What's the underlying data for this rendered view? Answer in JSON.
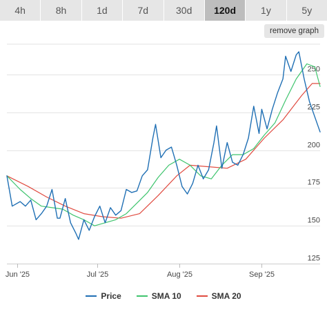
{
  "range_tabs": [
    {
      "label": "4h",
      "active": false
    },
    {
      "label": "8h",
      "active": false
    },
    {
      "label": "1d",
      "active": false
    },
    {
      "label": "7d",
      "active": false
    },
    {
      "label": "30d",
      "active": false
    },
    {
      "label": "120d",
      "active": true
    },
    {
      "label": "1y",
      "active": false
    },
    {
      "label": "5y",
      "active": false
    }
  ],
  "remove_graph_label": "remove graph",
  "chart_data": {
    "type": "line",
    "title": "",
    "xlabel": "",
    "ylabel": "",
    "x_start": "2025-05-28",
    "x_end": "2025-09-23",
    "x_ticks": [
      {
        "label": "Jun '25",
        "date": "2025-06-01"
      },
      {
        "label": "Jul '25",
        "date": "2025-07-01"
      },
      {
        "label": "Aug '25",
        "date": "2025-08-01"
      },
      {
        "label": "Sep '25",
        "date": "2025-09-01"
      }
    ],
    "ylim": [
      125,
      270
    ],
    "y_ticks": [
      125,
      150,
      175,
      200,
      225,
      250
    ],
    "grid": true,
    "legend_position": "bottom",
    "series": [
      {
        "name": "Price",
        "color": "#1f6fb4",
        "points": [
          [
            "2025-05-28",
            183
          ],
          [
            "2025-05-30",
            163
          ],
          [
            "2025-06-02",
            166
          ],
          [
            "2025-06-04",
            163
          ],
          [
            "2025-06-06",
            167
          ],
          [
            "2025-06-08",
            154
          ],
          [
            "2025-06-10",
            158
          ],
          [
            "2025-06-12",
            163
          ],
          [
            "2025-06-14",
            174
          ],
          [
            "2025-06-16",
            155
          ],
          [
            "2025-06-17",
            155
          ],
          [
            "2025-06-19",
            168
          ],
          [
            "2025-06-21",
            152
          ],
          [
            "2025-06-23",
            145
          ],
          [
            "2025-06-24",
            141
          ],
          [
            "2025-06-26",
            154
          ],
          [
            "2025-06-28",
            147
          ],
          [
            "2025-06-30",
            156
          ],
          [
            "2025-07-02",
            163
          ],
          [
            "2025-07-04",
            152
          ],
          [
            "2025-07-06",
            162
          ],
          [
            "2025-07-08",
            157
          ],
          [
            "2025-07-10",
            160
          ],
          [
            "2025-07-12",
            174
          ],
          [
            "2025-07-14",
            172
          ],
          [
            "2025-07-16",
            173
          ],
          [
            "2025-07-18",
            183
          ],
          [
            "2025-07-20",
            187
          ],
          [
            "2025-07-22",
            208
          ],
          [
            "2025-07-23",
            217
          ],
          [
            "2025-07-25",
            195
          ],
          [
            "2025-07-27",
            200
          ],
          [
            "2025-07-29",
            202
          ],
          [
            "2025-07-31",
            190
          ],
          [
            "2025-08-02",
            176
          ],
          [
            "2025-08-04",
            171
          ],
          [
            "2025-08-06",
            178
          ],
          [
            "2025-08-08",
            190
          ],
          [
            "2025-08-10",
            181
          ],
          [
            "2025-08-12",
            187
          ],
          [
            "2025-08-14",
            205
          ],
          [
            "2025-08-15",
            216
          ],
          [
            "2025-08-17",
            188
          ],
          [
            "2025-08-19",
            205
          ],
          [
            "2025-08-21",
            192
          ],
          [
            "2025-08-23",
            190
          ],
          [
            "2025-08-25",
            197
          ],
          [
            "2025-08-27",
            208
          ],
          [
            "2025-08-29",
            229
          ],
          [
            "2025-08-31",
            211
          ],
          [
            "2025-09-01",
            227
          ],
          [
            "2025-09-03",
            214
          ],
          [
            "2025-09-05",
            227
          ],
          [
            "2025-09-07",
            238
          ],
          [
            "2025-09-09",
            247
          ],
          [
            "2025-09-10",
            262
          ],
          [
            "2025-09-12",
            252
          ],
          [
            "2025-09-14",
            263
          ],
          [
            "2025-09-15",
            265
          ],
          [
            "2025-09-17",
            247
          ],
          [
            "2025-09-19",
            232
          ],
          [
            "2025-09-21",
            222
          ],
          [
            "2025-09-23",
            212
          ]
        ]
      },
      {
        "name": "SMA 10",
        "color": "#3ec46d",
        "points": [
          [
            "2025-05-28",
            183
          ],
          [
            "2025-06-02",
            174
          ],
          [
            "2025-06-06",
            168
          ],
          [
            "2025-06-10",
            163
          ],
          [
            "2025-06-14",
            162
          ],
          [
            "2025-06-18",
            161
          ],
          [
            "2025-06-22",
            157
          ],
          [
            "2025-06-26",
            154
          ],
          [
            "2025-06-30",
            150
          ],
          [
            "2025-07-04",
            152
          ],
          [
            "2025-07-08",
            154
          ],
          [
            "2025-07-12",
            158
          ],
          [
            "2025-07-16",
            165
          ],
          [
            "2025-07-20",
            172
          ],
          [
            "2025-07-24",
            182
          ],
          [
            "2025-07-28",
            190
          ],
          [
            "2025-08-01",
            194
          ],
          [
            "2025-08-05",
            190
          ],
          [
            "2025-08-09",
            183
          ],
          [
            "2025-08-13",
            181
          ],
          [
            "2025-08-17",
            190
          ],
          [
            "2025-08-21",
            197
          ],
          [
            "2025-08-25",
            197
          ],
          [
            "2025-08-29",
            201
          ],
          [
            "2025-09-02",
            210
          ],
          [
            "2025-09-06",
            218
          ],
          [
            "2025-09-10",
            233
          ],
          [
            "2025-09-14",
            247
          ],
          [
            "2025-09-18",
            257
          ],
          [
            "2025-09-21",
            255
          ],
          [
            "2025-09-23",
            242
          ]
        ]
      },
      {
        "name": "SMA 20",
        "color": "#e04a3f",
        "points": [
          [
            "2025-05-28",
            183
          ],
          [
            "2025-06-05",
            176
          ],
          [
            "2025-06-12",
            169
          ],
          [
            "2025-06-19",
            163
          ],
          [
            "2025-06-26",
            158
          ],
          [
            "2025-07-03",
            156
          ],
          [
            "2025-07-10",
            155
          ],
          [
            "2025-07-17",
            158
          ],
          [
            "2025-07-24",
            170
          ],
          [
            "2025-07-31",
            183
          ],
          [
            "2025-08-05",
            190
          ],
          [
            "2025-08-12",
            189
          ],
          [
            "2025-08-19",
            188
          ],
          [
            "2025-08-26",
            194
          ],
          [
            "2025-09-02",
            208
          ],
          [
            "2025-09-09",
            220
          ],
          [
            "2025-09-16",
            236
          ],
          [
            "2025-09-20",
            244
          ],
          [
            "2025-09-23",
            244
          ]
        ]
      }
    ]
  }
}
